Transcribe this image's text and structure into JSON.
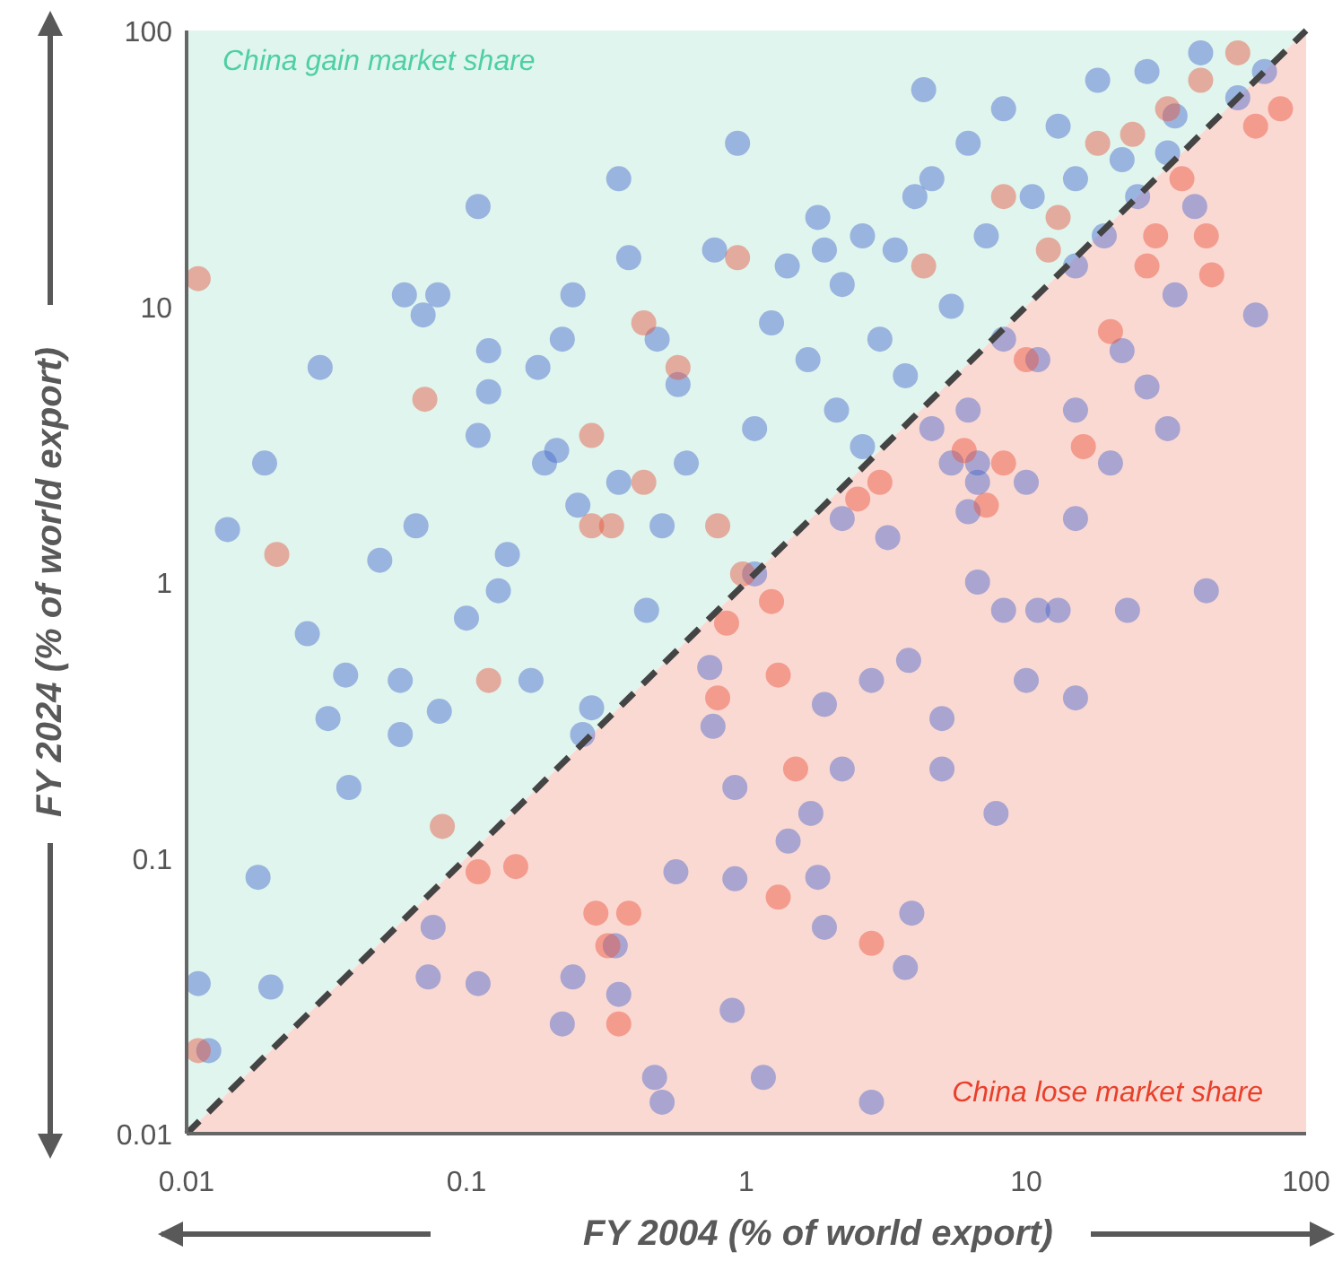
{
  "chart_data": {
    "type": "scatter",
    "xlabel": "FY 2004 (% of world export)",
    "ylabel": "FY 2024 (% of world export)",
    "log": "xy",
    "xlim": [
      0.01,
      100
    ],
    "ylim": [
      0.01,
      100
    ],
    "xticks": [
      0.01,
      0.1,
      1,
      10,
      100
    ],
    "yticks": [
      0.01,
      0.1,
      1,
      10,
      100
    ],
    "grid": false,
    "marker": "circle",
    "annotations": [
      "China gain market share",
      "China lose market share"
    ],
    "series": [
      {
        "color": "#4466cc",
        "x": [
          0.011,
          0.012,
          0.014,
          0.018,
          0.019,
          0.02,
          0.027,
          0.03,
          0.032,
          0.038,
          0.037,
          0.049,
          0.058,
          0.058,
          0.06,
          0.066,
          0.073,
          0.076,
          0.079,
          0.07,
          0.08,
          0.1,
          0.11,
          0.11,
          0.12,
          0.11,
          0.12,
          0.13,
          0.14,
          0.17,
          0.18,
          0.19,
          0.21,
          0.22,
          0.24,
          0.25,
          0.26,
          0.28,
          0.24,
          0.22,
          0.35,
          0.38,
          0.35,
          0.44,
          0.48,
          0.5,
          0.57,
          0.61,
          0.74,
          0.77,
          0.93,
          1.07,
          1.15,
          0.47,
          0.5,
          0.35,
          0.34,
          0.56,
          0.76,
          0.91,
          0.89,
          0.91,
          1.41,
          1.4,
          1.8,
          2.2,
          2.6,
          3.0,
          3.4,
          4.3,
          4.6,
          5.4,
          6.2,
          7.2,
          8.3,
          10.5,
          13,
          15,
          18,
          22,
          27,
          34,
          42,
          57,
          71,
          1.66,
          2.1,
          2.6,
          3.7,
          4.6,
          6.2,
          8.3,
          11,
          2.2,
          3.2,
          5.4,
          6.7,
          4.0,
          1.23,
          1.07,
          1.9,
          15,
          19,
          25,
          32,
          40,
          15,
          11,
          23,
          10,
          6.7,
          7.8,
          5.0,
          5.0,
          8.3,
          3.7,
          2.8,
          3.9,
          13,
          20,
          32,
          44,
          66,
          27,
          15,
          10,
          6.2,
          3.8,
          2.8,
          1.9,
          2.2,
          1.7,
          1.8,
          1.9,
          6.7,
          15,
          22,
          34
        ],
        "values": [
          0.035,
          0.02,
          1.55,
          0.085,
          2.7,
          0.034,
          0.65,
          6.0,
          0.32,
          0.18,
          0.46,
          1.2,
          0.44,
          0.28,
          11,
          1.6,
          0.037,
          0.056,
          11,
          9.3,
          0.34,
          0.74,
          23,
          3.4,
          4.9,
          0.035,
          6.9,
          0.93,
          1.26,
          0.44,
          6.0,
          2.7,
          3.0,
          7.6,
          11,
          1.9,
          0.28,
          0.35,
          0.037,
          0.025,
          29,
          15,
          2.3,
          0.79,
          7.6,
          1.6,
          5.2,
          2.7,
          0.49,
          16,
          39,
          3.6,
          0.016,
          0.016,
          0.013,
          0.032,
          0.048,
          0.089,
          0.3,
          0.18,
          0.028,
          0.084,
          0.115,
          14,
          21,
          12,
          18,
          7.6,
          16,
          61,
          29,
          10,
          39,
          18,
          52,
          25,
          45,
          14,
          66,
          34,
          71,
          49,
          83,
          57,
          71,
          6.4,
          4.2,
          3.1,
          5.6,
          3.6,
          4.2,
          7.6,
          6.4,
          1.7,
          1.45,
          2.7,
          2.3,
          25,
          8.7,
          1.07,
          16,
          29,
          18,
          25,
          36,
          23,
          0.38,
          0.79,
          0.79,
          0.44,
          1.0,
          0.145,
          0.32,
          0.21,
          0.79,
          0.04,
          0.013,
          0.063,
          0.79,
          2.7,
          3.6,
          0.93,
          9.3,
          5.1,
          4.2,
          2.3,
          1.8,
          0.52,
          0.44,
          0.36,
          0.21,
          0.145,
          0.085,
          0.056,
          2.7,
          1.7,
          6.9,
          11
        ]
      },
      {
        "color": "#e8513a",
        "x": [
          0.011,
          0.011,
          0.021,
          0.071,
          0.12,
          0.082,
          0.11,
          0.15,
          0.28,
          0.28,
          0.33,
          0.43,
          0.43,
          0.57,
          0.79,
          0.93,
          0.85,
          0.79,
          0.97,
          1.23,
          0.32,
          0.38,
          0.35,
          0.29,
          1.3,
          1.5,
          1.3,
          2.8,
          2.5,
          3.0,
          7.2,
          6.0,
          20,
          27,
          44,
          46,
          36,
          66,
          81,
          57,
          42,
          32,
          24,
          18,
          13,
          8.3,
          12,
          10,
          29,
          16,
          8.3,
          4.3
        ],
        "values": [
          12.6,
          0.02,
          1.26,
          4.6,
          0.44,
          0.13,
          0.089,
          0.093,
          3.4,
          1.6,
          1.6,
          8.7,
          2.3,
          6.0,
          1.6,
          15,
          0.71,
          0.38,
          1.07,
          0.85,
          0.048,
          0.063,
          0.025,
          0.063,
          0.46,
          0.21,
          0.072,
          0.049,
          2.0,
          2.3,
          1.9,
          3.0,
          8.1,
          14,
          18,
          13,
          29,
          45,
          52,
          83,
          66,
          52,
          42,
          39,
          21,
          25,
          16,
          6.4,
          18,
          3.1,
          2.7,
          14
        ]
      },
      {
        "type": "line",
        "color": "#444444",
        "line_style": "dashed",
        "marker": "none",
        "x": [
          0.01,
          100
        ],
        "values": [
          0.01,
          100
        ]
      }
    ]
  }
}
